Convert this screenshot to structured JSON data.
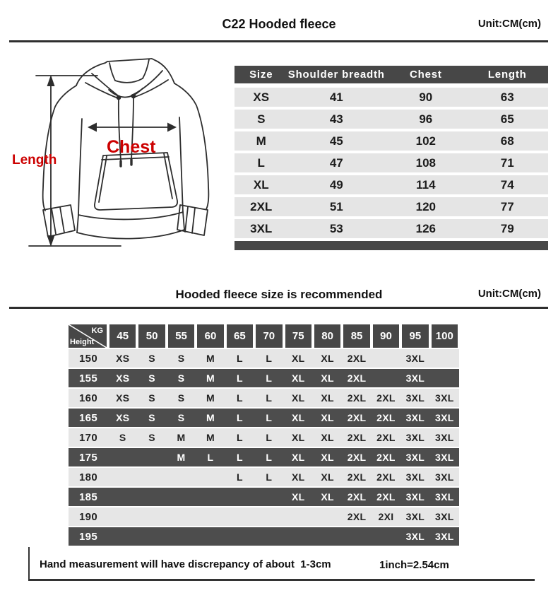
{
  "page": {
    "title": "C22 Hooded fleece",
    "unit": "Unit:CM(cm)"
  },
  "diagram": {
    "length_label": "Length",
    "chest_label": "Chest"
  },
  "size_table": {
    "columns": [
      "Size",
      "Shoulder breadth",
      "Chest",
      "Length"
    ],
    "rows": [
      [
        "XS",
        "41",
        "90",
        "63"
      ],
      [
        "S",
        "43",
        "96",
        "65"
      ],
      [
        "M",
        "45",
        "102",
        "68"
      ],
      [
        "L",
        "47",
        "108",
        "71"
      ],
      [
        "XL",
        "49",
        "114",
        "74"
      ],
      [
        "2XL",
        "51",
        "120",
        "77"
      ],
      [
        "3XL",
        "53",
        "126",
        "79"
      ]
    ]
  },
  "recommend": {
    "title": "Hooded fleece size is recommended",
    "unit": "Unit:CM(cm)",
    "corner_top": "KG",
    "corner_bottom": "Height",
    "weights": [
      "45",
      "50",
      "55",
      "60",
      "65",
      "70",
      "75",
      "80",
      "85",
      "90",
      "95",
      "100"
    ],
    "rows": [
      {
        "height": "150",
        "cells": [
          "XS",
          "S",
          "S",
          "M",
          "L",
          "L",
          "XL",
          "XL",
          "2XL",
          "",
          "3XL",
          ""
        ]
      },
      {
        "height": "155",
        "cells": [
          "XS",
          "S",
          "S",
          "M",
          "L",
          "L",
          "XL",
          "XL",
          "2XL",
          "",
          "3XL",
          ""
        ]
      },
      {
        "height": "160",
        "cells": [
          "XS",
          "S",
          "S",
          "M",
          "L",
          "L",
          "XL",
          "XL",
          "2XL",
          "2XL",
          "3XL",
          "3XL"
        ]
      },
      {
        "height": "165",
        "cells": [
          "XS",
          "S",
          "S",
          "M",
          "L",
          "L",
          "XL",
          "XL",
          "2XL",
          "2XL",
          "3XL",
          "3XL"
        ]
      },
      {
        "height": "170",
        "cells": [
          "S",
          "S",
          "M",
          "M",
          "L",
          "L",
          "XL",
          "XL",
          "2XL",
          "2XL",
          "3XL",
          "3XL"
        ]
      },
      {
        "height": "175",
        "cells": [
          "",
          "",
          "M",
          "L",
          "L",
          "L",
          "XL",
          "XL",
          "2XL",
          "2XL",
          "3XL",
          "3XL"
        ]
      },
      {
        "height": "180",
        "cells": [
          "",
          "",
          "",
          "",
          "L",
          "L",
          "XL",
          "XL",
          "2XL",
          "2XL",
          "3XL",
          "3XL"
        ]
      },
      {
        "height": "185",
        "cells": [
          "",
          "",
          "",
          "",
          "",
          "",
          "XL",
          "XL",
          "2XL",
          "2XL",
          "3XL",
          "3XL"
        ]
      },
      {
        "height": "190",
        "cells": [
          "",
          "",
          "",
          "",
          "",
          "",
          "",
          "",
          "2XL",
          "2XI",
          "3XL",
          "3XL"
        ]
      },
      {
        "height": "195",
        "cells": [
          "",
          "",
          "",
          "",
          "",
          "",
          "",
          "",
          "",
          "",
          "3XL",
          "3XL"
        ]
      }
    ]
  },
  "footer": {
    "note": "Hand measurement will have discrepancy of about  1-3cm",
    "conversion": "1inch=2.54cm"
  },
  "colors": {
    "dark_bar": "#474747",
    "dark_row": "#4d4d4d",
    "light_row": "#e6e6e6",
    "accent_red": "#cc0000",
    "line": "#2d2d2d"
  }
}
